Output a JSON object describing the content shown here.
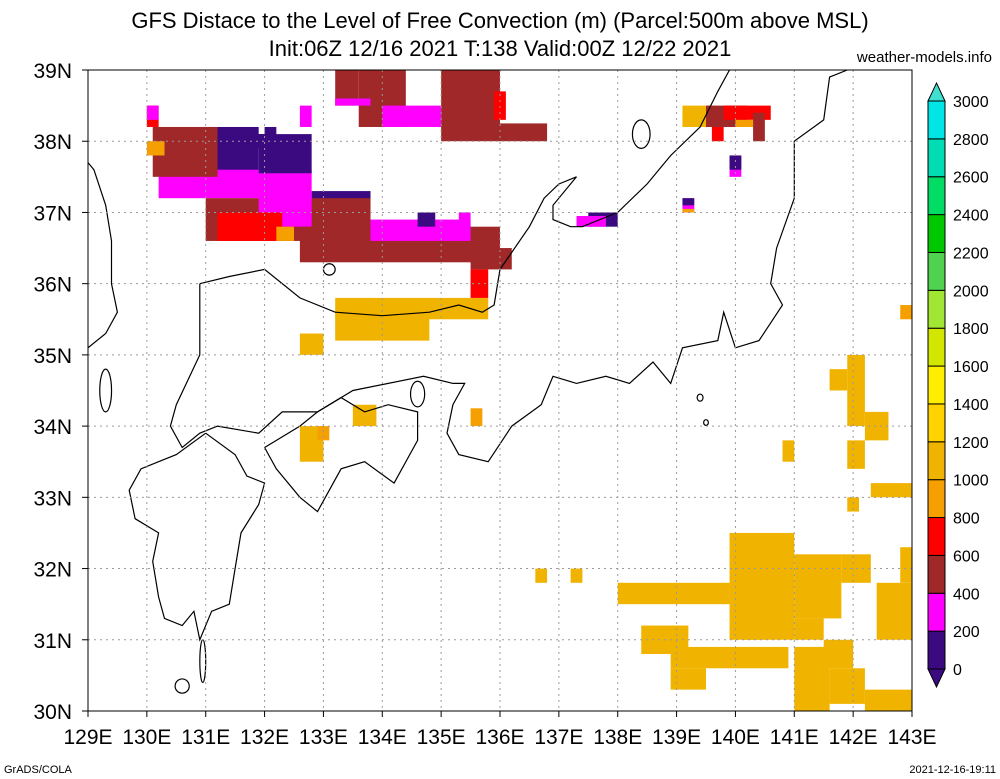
{
  "header": {
    "title": "GFS Distace to the Level of Free Convection (m) (Parcel:500m above MSL)",
    "subtitle": "Init:06Z 12/16 2021 T:138 Valid:00Z 12/22 2021",
    "credit": "weather-models.info"
  },
  "footer": {
    "left": "GrADS/COLA",
    "right": "2021-12-16-19:11"
  },
  "chart_data": {
    "type": "heatmap",
    "title": "GFS Distace to the Level of Free Convection (m) (Parcel:500m above MSL)",
    "units": "m",
    "xlim": [
      129,
      143
    ],
    "ylim": [
      30,
      39
    ],
    "grid": true,
    "x_ticks": [
      "129E",
      "130E",
      "131E",
      "132E",
      "133E",
      "134E",
      "135E",
      "136E",
      "137E",
      "138E",
      "139E",
      "140E",
      "141E",
      "142E",
      "143E"
    ],
    "y_ticks": [
      "30N",
      "31N",
      "32N",
      "33N",
      "34N",
      "35N",
      "36N",
      "37N",
      "38N",
      "39N"
    ],
    "colorbar": {
      "placement": "right",
      "levels": [
        0,
        200,
        400,
        600,
        800,
        1000,
        1200,
        1400,
        1600,
        1800,
        2000,
        2200,
        2400,
        2600,
        2800,
        3000
      ],
      "labels": [
        "0",
        "200",
        "400",
        "600",
        "800",
        "1000",
        "1200",
        "1400",
        "1600",
        "1800",
        "2000",
        "2200",
        "2400",
        "2600",
        "2800",
        "3000"
      ],
      "colors": [
        "#3c0a80",
        "#ff00ff",
        "#a02828",
        "#ff0000",
        "#f5a000",
        "#f0b400",
        "#ffd200",
        "#ffee00",
        "#d2e600",
        "#a0e632",
        "#50d250",
        "#00c800",
        "#00dc64",
        "#00dcb4",
        "#00e6e6",
        "#40e0d0"
      ]
    },
    "cells": [
      {
        "lon0": 130.9,
        "lon1": 131.9,
        "lat0": 37.55,
        "lat1": 38.2,
        "value": 100
      },
      {
        "lon0": 130.2,
        "lon1": 132.8,
        "lat0": 37.2,
        "lat1": 37.6,
        "value": 300
      },
      {
        "lon0": 131.9,
        "lon1": 132.8,
        "lat0": 37.55,
        "lat1": 38.1,
        "value": 100
      },
      {
        "lon0": 132.8,
        "lon1": 133.8,
        "lat0": 36.9,
        "lat1": 37.3,
        "value": 100
      },
      {
        "lon0": 130.1,
        "lon1": 131.2,
        "lat0": 37.5,
        "lat1": 38.2,
        "value": 500
      },
      {
        "lon0": 131.0,
        "lon1": 133.8,
        "lat0": 36.6,
        "lat1": 37.2,
        "value": 500
      },
      {
        "lon0": 131.9,
        "lon1": 132.8,
        "lat0": 36.8,
        "lat1": 37.3,
        "value": 300
      },
      {
        "lon0": 132.6,
        "lon1": 136.0,
        "lat0": 36.3,
        "lat1": 36.8,
        "value": 500
      },
      {
        "lon0": 133.8,
        "lon1": 135.5,
        "lat0": 36.6,
        "lat1": 36.9,
        "value": 300
      },
      {
        "lon0": 131.2,
        "lon1": 132.3,
        "lat0": 36.6,
        "lat1": 37.0,
        "value": 700
      },
      {
        "lon0": 134.6,
        "lon1": 134.9,
        "lat0": 36.8,
        "lat1": 37.0,
        "value": 100
      },
      {
        "lon0": 135.3,
        "lon1": 135.5,
        "lat0": 36.8,
        "lat1": 37.0,
        "value": 300
      },
      {
        "lon0": 135.5,
        "lon1": 136.2,
        "lat0": 36.2,
        "lat1": 36.5,
        "value": 500
      },
      {
        "lon0": 133.6,
        "lon1": 134.4,
        "lat0": 38.2,
        "lat1": 39.0,
        "value": 500
      },
      {
        "lon0": 133.2,
        "lon1": 133.6,
        "lat0": 38.5,
        "lat1": 39.0,
        "value": 500
      },
      {
        "lon0": 133.2,
        "lon1": 133.8,
        "lat0": 38.5,
        "lat1": 38.6,
        "value": 300
      },
      {
        "lon0": 134.0,
        "lon1": 135.0,
        "lat0": 38.2,
        "lat1": 38.5,
        "value": 300
      },
      {
        "lon0": 135.0,
        "lon1": 136.0,
        "lat0": 38.0,
        "lat1": 39.0,
        "value": 500
      },
      {
        "lon0": 136.0,
        "lon1": 136.8,
        "lat0": 38.0,
        "lat1": 38.25,
        "value": 500
      },
      {
        "lon0": 135.9,
        "lon1": 136.1,
        "lat0": 38.3,
        "lat1": 38.7,
        "value": 700
      },
      {
        "lon0": 130.0,
        "lon1": 130.2,
        "lat0": 38.2,
        "lat1": 38.5,
        "value": 700
      },
      {
        "lon0": 130.0,
        "lon1": 130.2,
        "lat0": 38.3,
        "lat1": 38.5,
        "value": 300
      },
      {
        "lon0": 132.0,
        "lon1": 132.2,
        "lat0": 38.05,
        "lat1": 38.2,
        "value": 100
      },
      {
        "lon0": 132.6,
        "lon1": 132.8,
        "lat0": 38.2,
        "lat1": 38.5,
        "value": 300
      },
      {
        "lon0": 131.8,
        "lon1": 132.0,
        "lat0": 37.9,
        "lat1": 38.1,
        "value": 100
      },
      {
        "lon0": 130.0,
        "lon1": 130.3,
        "lat0": 37.8,
        "lat1": 38.0,
        "value": 900
      },
      {
        "lon0": 132.2,
        "lon1": 132.5,
        "lat0": 36.6,
        "lat1": 36.8,
        "value": 900
      },
      {
        "lon0": 133.2,
        "lon1": 135.8,
        "lat0": 35.5,
        "lat1": 35.8,
        "value": 1100
      },
      {
        "lon0": 133.2,
        "lon1": 134.8,
        "lat0": 35.2,
        "lat1": 35.6,
        "value": 1100
      },
      {
        "lon0": 132.6,
        "lon1": 133.0,
        "lat0": 35.0,
        "lat1": 35.3,
        "value": 1100
      },
      {
        "lon0": 135.5,
        "lon1": 135.8,
        "lat0": 35.8,
        "lat1": 36.2,
        "value": 700
      },
      {
        "lon0": 133.5,
        "lon1": 133.9,
        "lat0": 34.0,
        "lat1": 34.3,
        "value": 1100
      },
      {
        "lon0": 132.6,
        "lon1": 133.0,
        "lat0": 33.5,
        "lat1": 34.0,
        "value": 1100
      },
      {
        "lon0": 132.9,
        "lon1": 133.1,
        "lat0": 33.8,
        "lat1": 34.0,
        "value": 900
      },
      {
        "lon0": 135.5,
        "lon1": 135.7,
        "lat0": 34.0,
        "lat1": 34.25,
        "value": 900
      },
      {
        "lon0": 137.5,
        "lon1": 138.0,
        "lat0": 36.8,
        "lat1": 37.0,
        "value": 100
      },
      {
        "lon0": 137.3,
        "lon1": 137.8,
        "lat0": 36.8,
        "lat1": 36.95,
        "value": 300
      },
      {
        "lon0": 139.1,
        "lon1": 139.7,
        "lat0": 38.2,
        "lat1": 38.5,
        "value": 1100
      },
      {
        "lon0": 139.5,
        "lon1": 140.2,
        "lat0": 38.2,
        "lat1": 38.5,
        "value": 500
      },
      {
        "lon0": 139.8,
        "lon1": 140.6,
        "lat0": 38.3,
        "lat1": 38.5,
        "value": 700
      },
      {
        "lon0": 140.0,
        "lon1": 140.3,
        "lat0": 38.2,
        "lat1": 38.3,
        "value": 900
      },
      {
        "lon0": 140.3,
        "lon1": 140.5,
        "lat0": 38.0,
        "lat1": 38.4,
        "value": 500
      },
      {
        "lon0": 139.6,
        "lon1": 139.8,
        "lat0": 38.0,
        "lat1": 38.2,
        "value": 700
      },
      {
        "lon0": 139.9,
        "lon1": 140.1,
        "lat0": 37.5,
        "lat1": 37.8,
        "value": 300
      },
      {
        "lon0": 139.9,
        "lon1": 140.1,
        "lat0": 37.6,
        "lat1": 37.8,
        "value": 100
      },
      {
        "lon0": 139.1,
        "lon1": 139.3,
        "lat0": 37.0,
        "lat1": 37.2,
        "value": 300
      },
      {
        "lon0": 139.1,
        "lon1": 139.3,
        "lat0": 37.1,
        "lat1": 37.2,
        "value": 100
      },
      {
        "lon0": 139.1,
        "lon1": 139.3,
        "lat0": 37.0,
        "lat1": 37.05,
        "value": 900
      },
      {
        "lon0": 142.8,
        "lon1": 143.0,
        "lat0": 35.5,
        "lat1": 35.7,
        "value": 900
      },
      {
        "lon0": 141.9,
        "lon1": 142.2,
        "lat0": 34.0,
        "lat1": 35.0,
        "value": 1100
      },
      {
        "lon0": 141.6,
        "lon1": 141.9,
        "lat0": 34.5,
        "lat1": 34.8,
        "value": 1100
      },
      {
        "lon0": 142.2,
        "lon1": 142.6,
        "lat0": 33.8,
        "lat1": 34.2,
        "value": 1100
      },
      {
        "lon0": 141.9,
        "lon1": 142.2,
        "lat0": 33.4,
        "lat1": 33.8,
        "value": 1100
      },
      {
        "lon0": 140.8,
        "lon1": 141.0,
        "lat0": 33.5,
        "lat1": 33.8,
        "value": 1100
      },
      {
        "lon0": 142.3,
        "lon1": 143.0,
        "lat0": 33.0,
        "lat1": 33.2,
        "value": 1100
      },
      {
        "lon0": 141.9,
        "lon1": 142.1,
        "lat0": 32.8,
        "lat1": 33.0,
        "value": 1100
      },
      {
        "lon0": 139.9,
        "lon1": 141.0,
        "lat0": 31.0,
        "lat1": 32.5,
        "value": 1100
      },
      {
        "lon0": 141.0,
        "lon1": 141.8,
        "lat0": 31.3,
        "lat1": 32.2,
        "value": 1100
      },
      {
        "lon0": 141.8,
        "lon1": 142.3,
        "lat0": 31.8,
        "lat1": 32.2,
        "value": 1100
      },
      {
        "lon0": 138.0,
        "lon1": 139.9,
        "lat0": 31.5,
        "lat1": 31.8,
        "value": 1100
      },
      {
        "lon0": 138.4,
        "lon1": 139.2,
        "lat0": 30.8,
        "lat1": 31.2,
        "value": 1100
      },
      {
        "lon0": 138.9,
        "lon1": 140.9,
        "lat0": 30.6,
        "lat1": 30.9,
        "value": 1100
      },
      {
        "lon0": 138.9,
        "lon1": 139.5,
        "lat0": 30.3,
        "lat1": 30.6,
        "value": 1100
      },
      {
        "lon0": 140.1,
        "lon1": 140.5,
        "lat0": 31.0,
        "lat1": 31.3,
        "value": 1100
      },
      {
        "lon0": 141.0,
        "lon1": 141.5,
        "lat0": 31.0,
        "lat1": 31.3,
        "value": 1100
      },
      {
        "lon0": 141.5,
        "lon1": 142.0,
        "lat0": 30.6,
        "lat1": 31.0,
        "value": 1100
      },
      {
        "lon0": 141.0,
        "lon1": 141.6,
        "lat0": 30.0,
        "lat1": 30.9,
        "value": 1100
      },
      {
        "lon0": 141.6,
        "lon1": 142.2,
        "lat0": 30.1,
        "lat1": 30.6,
        "value": 1100
      },
      {
        "lon0": 142.2,
        "lon1": 143.0,
        "lat0": 30.0,
        "lat1": 30.3,
        "value": 1100
      },
      {
        "lon0": 142.4,
        "lon1": 143.0,
        "lat0": 31.0,
        "lat1": 31.8,
        "value": 1100
      },
      {
        "lon0": 142.8,
        "lon1": 143.0,
        "lat0": 31.8,
        "lat1": 32.3,
        "value": 1100
      },
      {
        "lon0": 136.6,
        "lon1": 136.8,
        "lat0": 31.8,
        "lat1": 32.0,
        "value": 1100
      },
      {
        "lon0": 137.2,
        "lon1": 137.4,
        "lat0": 31.8,
        "lat1": 32.0,
        "value": 1100
      }
    ],
    "coastlines": [
      [
        [
          129.0,
          37.7
        ],
        [
          129.1,
          37.6
        ],
        [
          129.3,
          37.1
        ],
        [
          129.4,
          36.6
        ],
        [
          129.4,
          36.0
        ],
        [
          129.5,
          35.6
        ],
        [
          129.3,
          35.3
        ],
        [
          129.0,
          35.1
        ]
      ],
      [
        [
          130.9,
          36.0
        ],
        [
          131.4,
          36.1
        ],
        [
          132.0,
          36.2
        ],
        [
          132.6,
          35.8
        ],
        [
          133.2,
          35.6
        ],
        [
          134.0,
          35.55
        ],
        [
          134.8,
          35.6
        ],
        [
          135.3,
          35.7
        ],
        [
          135.7,
          35.6
        ],
        [
          135.9,
          35.7
        ],
        [
          136.0,
          36.2
        ],
        [
          136.5,
          36.8
        ],
        [
          136.75,
          37.2
        ],
        [
          137.0,
          37.4
        ],
        [
          137.3,
          37.5
        ],
        [
          136.9,
          37.1
        ],
        [
          136.9,
          36.9
        ],
        [
          137.2,
          36.8
        ],
        [
          137.4,
          36.8
        ],
        [
          138.0,
          37.0
        ],
        [
          138.5,
          37.4
        ],
        [
          138.9,
          37.8
        ],
        [
          139.4,
          38.2
        ],
        [
          139.7,
          38.7
        ],
        [
          139.9,
          39.0
        ]
      ],
      [
        [
          130.9,
          36.0
        ],
        [
          130.9,
          35.0
        ],
        [
          130.5,
          34.3
        ],
        [
          130.4,
          34.0
        ],
        [
          130.6,
          33.7
        ],
        [
          130.9,
          33.9
        ],
        [
          131.2,
          34.0
        ],
        [
          131.9,
          33.9
        ],
        [
          132.3,
          34.2
        ],
        [
          132.9,
          34.2
        ],
        [
          133.5,
          34.5
        ],
        [
          134.1,
          34.6
        ],
        [
          134.7,
          34.7
        ],
        [
          135.2,
          34.6
        ],
        [
          135.4,
          34.6
        ],
        [
          135.2,
          34.3
        ],
        [
          135.1,
          33.9
        ],
        [
          135.3,
          33.6
        ],
        [
          135.8,
          33.5
        ],
        [
          136.2,
          34.0
        ],
        [
          136.7,
          34.3
        ],
        [
          136.9,
          34.7
        ],
        [
          137.3,
          34.6
        ],
        [
          137.8,
          34.7
        ],
        [
          138.2,
          34.6
        ],
        [
          138.6,
          34.9
        ],
        [
          138.9,
          34.6
        ],
        [
          139.1,
          35.1
        ],
        [
          139.7,
          35.2
        ],
        [
          139.8,
          35.6
        ],
        [
          140.0,
          35.1
        ],
        [
          140.4,
          35.2
        ],
        [
          140.8,
          35.7
        ],
        [
          140.6,
          36.0
        ],
        [
          140.7,
          36.5
        ],
        [
          141.0,
          37.2
        ],
        [
          141.0,
          38.0
        ],
        [
          141.5,
          38.3
        ],
        [
          141.6,
          38.9
        ],
        [
          141.9,
          39.0
        ]
      ],
      [
        [
          131.0,
          33.9
        ],
        [
          130.5,
          33.6
        ],
        [
          130.2,
          33.5
        ],
        [
          129.9,
          33.4
        ],
        [
          129.7,
          33.1
        ],
        [
          129.8,
          32.7
        ],
        [
          130.2,
          32.5
        ],
        [
          130.1,
          32.1
        ],
        [
          130.2,
          31.6
        ],
        [
          130.3,
          31.3
        ],
        [
          130.6,
          31.2
        ],
        [
          130.8,
          31.4
        ],
        [
          130.9,
          31.0
        ],
        [
          131.1,
          31.4
        ],
        [
          131.4,
          31.5
        ],
        [
          131.5,
          32.0
        ],
        [
          131.6,
          32.5
        ],
        [
          131.9,
          32.9
        ],
        [
          132.0,
          33.2
        ],
        [
          131.7,
          33.3
        ],
        [
          131.5,
          33.6
        ],
        [
          131.0,
          33.9
        ]
      ],
      [
        [
          132.0,
          33.7
        ],
        [
          132.6,
          34.0
        ],
        [
          132.9,
          34.2
        ],
        [
          133.3,
          34.4
        ],
        [
          133.7,
          34.2
        ],
        [
          134.1,
          34.3
        ],
        [
          134.6,
          34.2
        ],
        [
          134.6,
          33.8
        ],
        [
          134.2,
          33.2
        ],
        [
          133.7,
          33.5
        ],
        [
          133.3,
          33.4
        ],
        [
          132.9,
          32.8
        ],
        [
          132.6,
          33.0
        ],
        [
          132.2,
          33.4
        ],
        [
          132.0,
          33.7
        ]
      ]
    ],
    "islands": [
      {
        "lon": 134.6,
        "lat": 34.45,
        "rx": 0.12,
        "ry": 0.18
      },
      {
        "lon": 133.1,
        "lat": 36.2,
        "rx": 0.1,
        "ry": 0.08
      },
      {
        "lon": 138.4,
        "lat": 38.1,
        "rx": 0.15,
        "ry": 0.2
      },
      {
        "lon": 129.3,
        "lat": 34.5,
        "rx": 0.1,
        "ry": 0.3
      },
      {
        "lon": 130.6,
        "lat": 30.35,
        "rx": 0.12,
        "ry": 0.1
      },
      {
        "lon": 130.95,
        "lat": 30.7,
        "rx": 0.05,
        "ry": 0.3
      },
      {
        "lon": 139.4,
        "lat": 34.4,
        "rx": 0.05,
        "ry": 0.05
      },
      {
        "lon": 139.5,
        "lat": 34.05,
        "rx": 0.04,
        "ry": 0.04
      }
    ]
  }
}
